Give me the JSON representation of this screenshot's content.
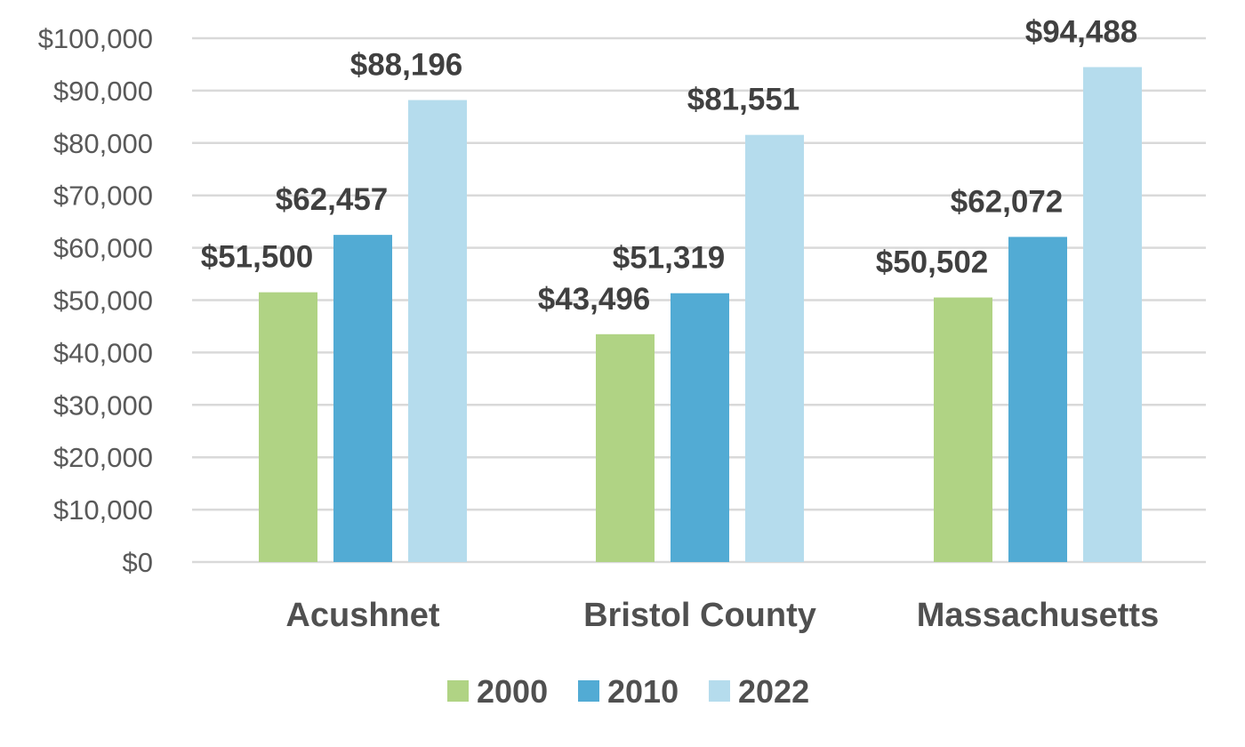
{
  "chart_data": {
    "type": "bar",
    "title": "",
    "xlabel": "",
    "ylabel": "",
    "categories": [
      "Acushnet",
      "Bristol County",
      "Massachusetts"
    ],
    "series": [
      {
        "name": "2000",
        "color": "#b0d384",
        "values": [
          51500,
          43496,
          50502
        ],
        "labels": [
          "$51,500",
          "$43,496",
          "$50,502"
        ]
      },
      {
        "name": "2010",
        "color": "#52abd4",
        "values": [
          62457,
          51319,
          62072
        ],
        "labels": [
          "$62,457",
          "$51,319",
          "$62,072"
        ]
      },
      {
        "name": "2022",
        "color": "#b5dced",
        "values": [
          88196,
          81551,
          94488
        ],
        "labels": [
          "$88,196",
          "$81,551",
          "$94,488"
        ]
      }
    ],
    "ylim": [
      0,
      100000
    ],
    "yticks": [
      0,
      10000,
      20000,
      30000,
      40000,
      50000,
      60000,
      70000,
      80000,
      90000,
      100000
    ],
    "ytick_labels": [
      "$0",
      "$10,000",
      "$20,000",
      "$30,000",
      "$40,000",
      "$50,000",
      "$60,000",
      "$70,000",
      "$80,000",
      "$90,000",
      "$100,000"
    ],
    "grid": true,
    "legend_position": "bottom"
  }
}
